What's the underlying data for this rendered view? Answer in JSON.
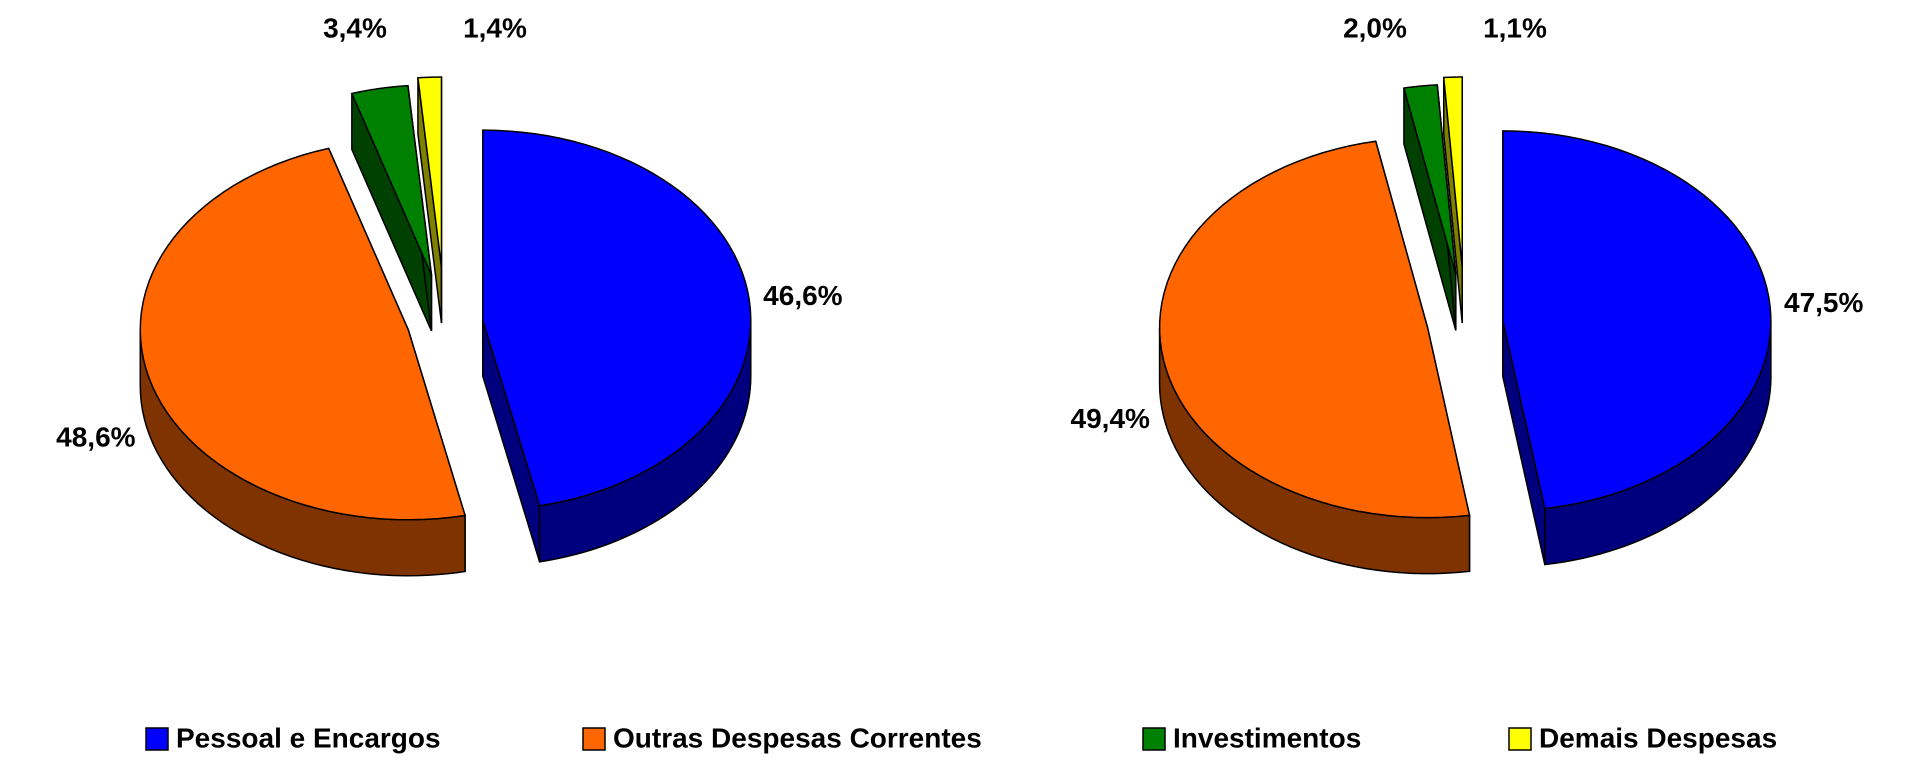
{
  "legend": {
    "entries": [
      "Pessoal e Encargos",
      "Outras Despesas Correntes",
      "Investimentos",
      "Demais Despesas"
    ],
    "colors": [
      "#0000ff",
      "#ff6600",
      "#008000",
      "#ffff00"
    ]
  },
  "chart_data": [
    {
      "type": "pie",
      "values": [
        46.6,
        48.6,
        3.4,
        1.4
      ],
      "value_labels": [
        "46,6%",
        "48,6%",
        "3,4%",
        "1,4%"
      ]
    },
    {
      "type": "pie",
      "values": [
        47.5,
        49.4,
        2.0,
        1.1
      ],
      "value_labels": [
        "47,5%",
        "49,4%",
        "2,0%",
        "1,1%"
      ]
    }
  ]
}
